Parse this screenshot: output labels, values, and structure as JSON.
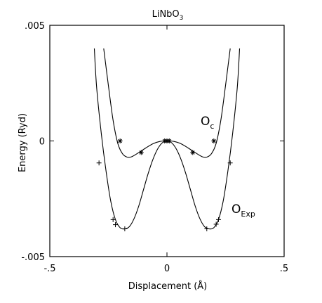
{
  "chart_data": {
    "type": "line",
    "title": "LiNbO",
    "title_subscript": "3",
    "xlabel": "Displacement (Å)",
    "ylabel": "Energy (Ryd)",
    "xlim": [
      -0.5,
      0.5
    ],
    "ylim": [
      -0.005,
      0.005
    ],
    "x_ticks": [
      {
        "value": -0.5,
        "label": "-.5"
      },
      {
        "value": 0,
        "label": "0"
      },
      {
        "value": 0.5,
        "label": ".5"
      }
    ],
    "y_ticks": [
      {
        "value": 0.005,
        "label": ".005"
      },
      {
        "value": 0,
        "label": "0"
      },
      {
        "value": -0.005,
        "label": "-.005"
      }
    ],
    "grid": false,
    "series": [
      {
        "name": "O",
        "name_subscript": "c",
        "marker": "asterisk",
        "curve": [
          [
            -0.27,
            0.004
          ],
          [
            -0.25,
            0.0024
          ],
          [
            -0.23,
            0.0009
          ],
          [
            -0.21,
            -0.0001
          ],
          [
            -0.19,
            -0.00055
          ],
          [
            -0.17,
            -0.0007
          ],
          [
            -0.15,
            -0.00068
          ],
          [
            -0.12,
            -0.0005
          ],
          [
            -0.09,
            -0.0003
          ],
          [
            -0.06,
            -0.00012
          ],
          [
            -0.03,
            -2e-05
          ],
          [
            0.0,
            0.0
          ],
          [
            0.03,
            -2e-05
          ],
          [
            0.06,
            -0.00012
          ],
          [
            0.09,
            -0.0003
          ],
          [
            0.12,
            -0.0005
          ],
          [
            0.15,
            -0.00068
          ],
          [
            0.17,
            -0.0007
          ],
          [
            0.19,
            -0.00055
          ],
          [
            0.21,
            -0.0001
          ],
          [
            0.23,
            0.0009
          ],
          [
            0.25,
            0.0024
          ],
          [
            0.27,
            0.004
          ]
        ],
        "points": [
          [
            -0.2,
            0.0
          ],
          [
            -0.11,
            -0.0005
          ],
          [
            -0.01,
            0.0
          ],
          [
            0.0,
            0.0
          ],
          [
            0.01,
            0.0
          ],
          [
            0.11,
            -0.0005
          ],
          [
            0.2,
            0.0
          ]
        ]
      },
      {
        "name": "O",
        "name_subscript": "Exp",
        "marker": "plus",
        "curve": [
          [
            -0.31,
            0.004
          ],
          [
            -0.3,
            0.0023
          ],
          [
            -0.28,
            0.0003
          ],
          [
            -0.26,
            -0.0013
          ],
          [
            -0.24,
            -0.0026
          ],
          [
            -0.22,
            -0.0034
          ],
          [
            -0.2,
            -0.00375
          ],
          [
            -0.18,
            -0.0038
          ],
          [
            -0.16,
            -0.0037
          ],
          [
            -0.14,
            -0.00335
          ],
          [
            -0.12,
            -0.0028
          ],
          [
            -0.1,
            -0.0021
          ],
          [
            -0.08,
            -0.0014
          ],
          [
            -0.06,
            -0.0008
          ],
          [
            -0.04,
            -0.00035
          ],
          [
            -0.02,
            -8e-05
          ],
          [
            0.0,
            0.0
          ],
          [
            0.02,
            -8e-05
          ],
          [
            0.04,
            -0.00035
          ],
          [
            0.06,
            -0.0008
          ],
          [
            0.08,
            -0.0014
          ],
          [
            0.1,
            -0.0021
          ],
          [
            0.12,
            -0.0028
          ],
          [
            0.14,
            -0.00335
          ],
          [
            0.16,
            -0.0037
          ],
          [
            0.18,
            -0.0038
          ],
          [
            0.2,
            -0.00375
          ],
          [
            0.22,
            -0.0034
          ],
          [
            0.24,
            -0.0026
          ],
          [
            0.26,
            -0.0013
          ],
          [
            0.28,
            0.0003
          ],
          [
            0.3,
            0.0023
          ],
          [
            0.31,
            0.004
          ]
        ],
        "points": [
          [
            -0.29,
            -0.00095
          ],
          [
            -0.23,
            -0.0034
          ],
          [
            -0.22,
            -0.00362
          ],
          [
            -0.18,
            -0.0038
          ],
          [
            0.17,
            -0.0038
          ],
          [
            0.21,
            -0.0036
          ],
          [
            0.22,
            -0.0034
          ],
          [
            0.27,
            -0.00095
          ]
        ]
      }
    ]
  }
}
